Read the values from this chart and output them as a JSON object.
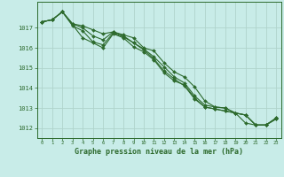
{
  "title": "Graphe pression niveau de la mer (hPa)",
  "xlabel_hours": [
    0,
    1,
    2,
    3,
    4,
    5,
    6,
    7,
    8,
    9,
    10,
    11,
    12,
    13,
    14,
    15,
    16,
    17,
    18,
    19,
    20,
    21,
    22,
    23
  ],
  "series": [
    [
      1017.3,
      1017.4,
      1017.8,
      1017.2,
      1017.1,
      1016.9,
      1016.7,
      1016.8,
      1016.65,
      1016.5,
      1016.0,
      1015.85,
      1015.25,
      1014.8,
      1014.55,
      1014.05,
      1013.35,
      1013.05,
      1013.0,
      1012.75,
      1012.25,
      1012.15,
      1012.15,
      1012.5
    ],
    [
      1017.3,
      1017.4,
      1017.8,
      1017.2,
      1017.0,
      1016.6,
      1016.4,
      1016.8,
      1016.6,
      1016.25,
      1015.95,
      1015.55,
      1015.05,
      1014.55,
      1014.25,
      1013.6,
      1013.15,
      1013.05,
      1013.0,
      1012.75,
      1012.65,
      1012.15,
      1012.15,
      1012.5
    ],
    [
      1017.3,
      1017.4,
      1017.8,
      1017.1,
      1016.85,
      1016.3,
      1016.15,
      1016.75,
      1016.55,
      1016.25,
      1015.9,
      1015.45,
      1014.85,
      1014.45,
      1014.1,
      1013.45,
      1013.05,
      1012.95,
      1012.85,
      1012.75,
      1012.65,
      1012.15,
      1012.15,
      1012.45
    ],
    [
      1017.3,
      1017.4,
      1017.8,
      1017.15,
      1016.5,
      1016.25,
      1016.0,
      1016.7,
      1016.5,
      1016.05,
      1015.8,
      1015.4,
      1014.75,
      1014.35,
      1014.15,
      1013.5,
      1013.05,
      1012.95,
      1012.85,
      1012.75,
      1012.65,
      1012.15,
      1012.15,
      1012.45
    ]
  ],
  "line_color": "#2d6a2d",
  "marker_color": "#2d6a2d",
  "bg_color": "#c8ece8",
  "grid_color": "#b0d4cc",
  "axis_color": "#2d6a2d",
  "tick_label_color": "#2d6a2d",
  "title_color": "#2d6a2d",
  "ylim": [
    1011.5,
    1018.3
  ],
  "yticks": [
    1012,
    1013,
    1014,
    1015,
    1016,
    1017
  ],
  "marker": "D",
  "marker_size": 2.0,
  "line_width": 0.8
}
